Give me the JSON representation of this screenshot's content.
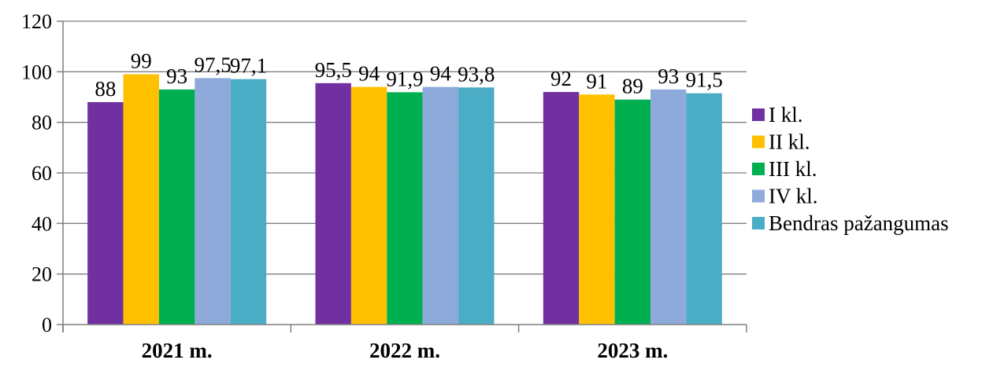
{
  "header_text": "y",
  "chart_data": {
    "type": "bar",
    "categories": [
      "2021 m.",
      "2022 m.",
      "2023 m."
    ],
    "series": [
      {
        "name": "I kl.",
        "color": "#7030a0",
        "values": [
          88,
          95.5,
          92
        ],
        "labels": [
          "88",
          "95,5",
          "92"
        ]
      },
      {
        "name": "II kl.",
        "color": "#ffc000",
        "values": [
          99,
          94,
          91
        ],
        "labels": [
          "99",
          "94",
          "91"
        ]
      },
      {
        "name": "III kl.",
        "color": "#00b050",
        "values": [
          93,
          91.9,
          89
        ],
        "labels": [
          "93",
          "91,9",
          "89"
        ]
      },
      {
        "name": "IV kl.",
        "color": "#8eaadb",
        "values": [
          97.5,
          94,
          93
        ],
        "labels": [
          "97,5",
          "94",
          "93"
        ]
      },
      {
        "name": "Bendras pažangumas",
        "color": "#4bacc6",
        "values": [
          97.1,
          93.8,
          91.5
        ],
        "labels": [
          "97,1",
          "93,8",
          "91,5"
        ]
      }
    ],
    "ylim": [
      0,
      120
    ],
    "yticks": [
      "0",
      "20",
      "40",
      "60",
      "80",
      "100",
      "120"
    ],
    "grid": true,
    "legend": "right",
    "grid_color": "#7f7f7f"
  }
}
